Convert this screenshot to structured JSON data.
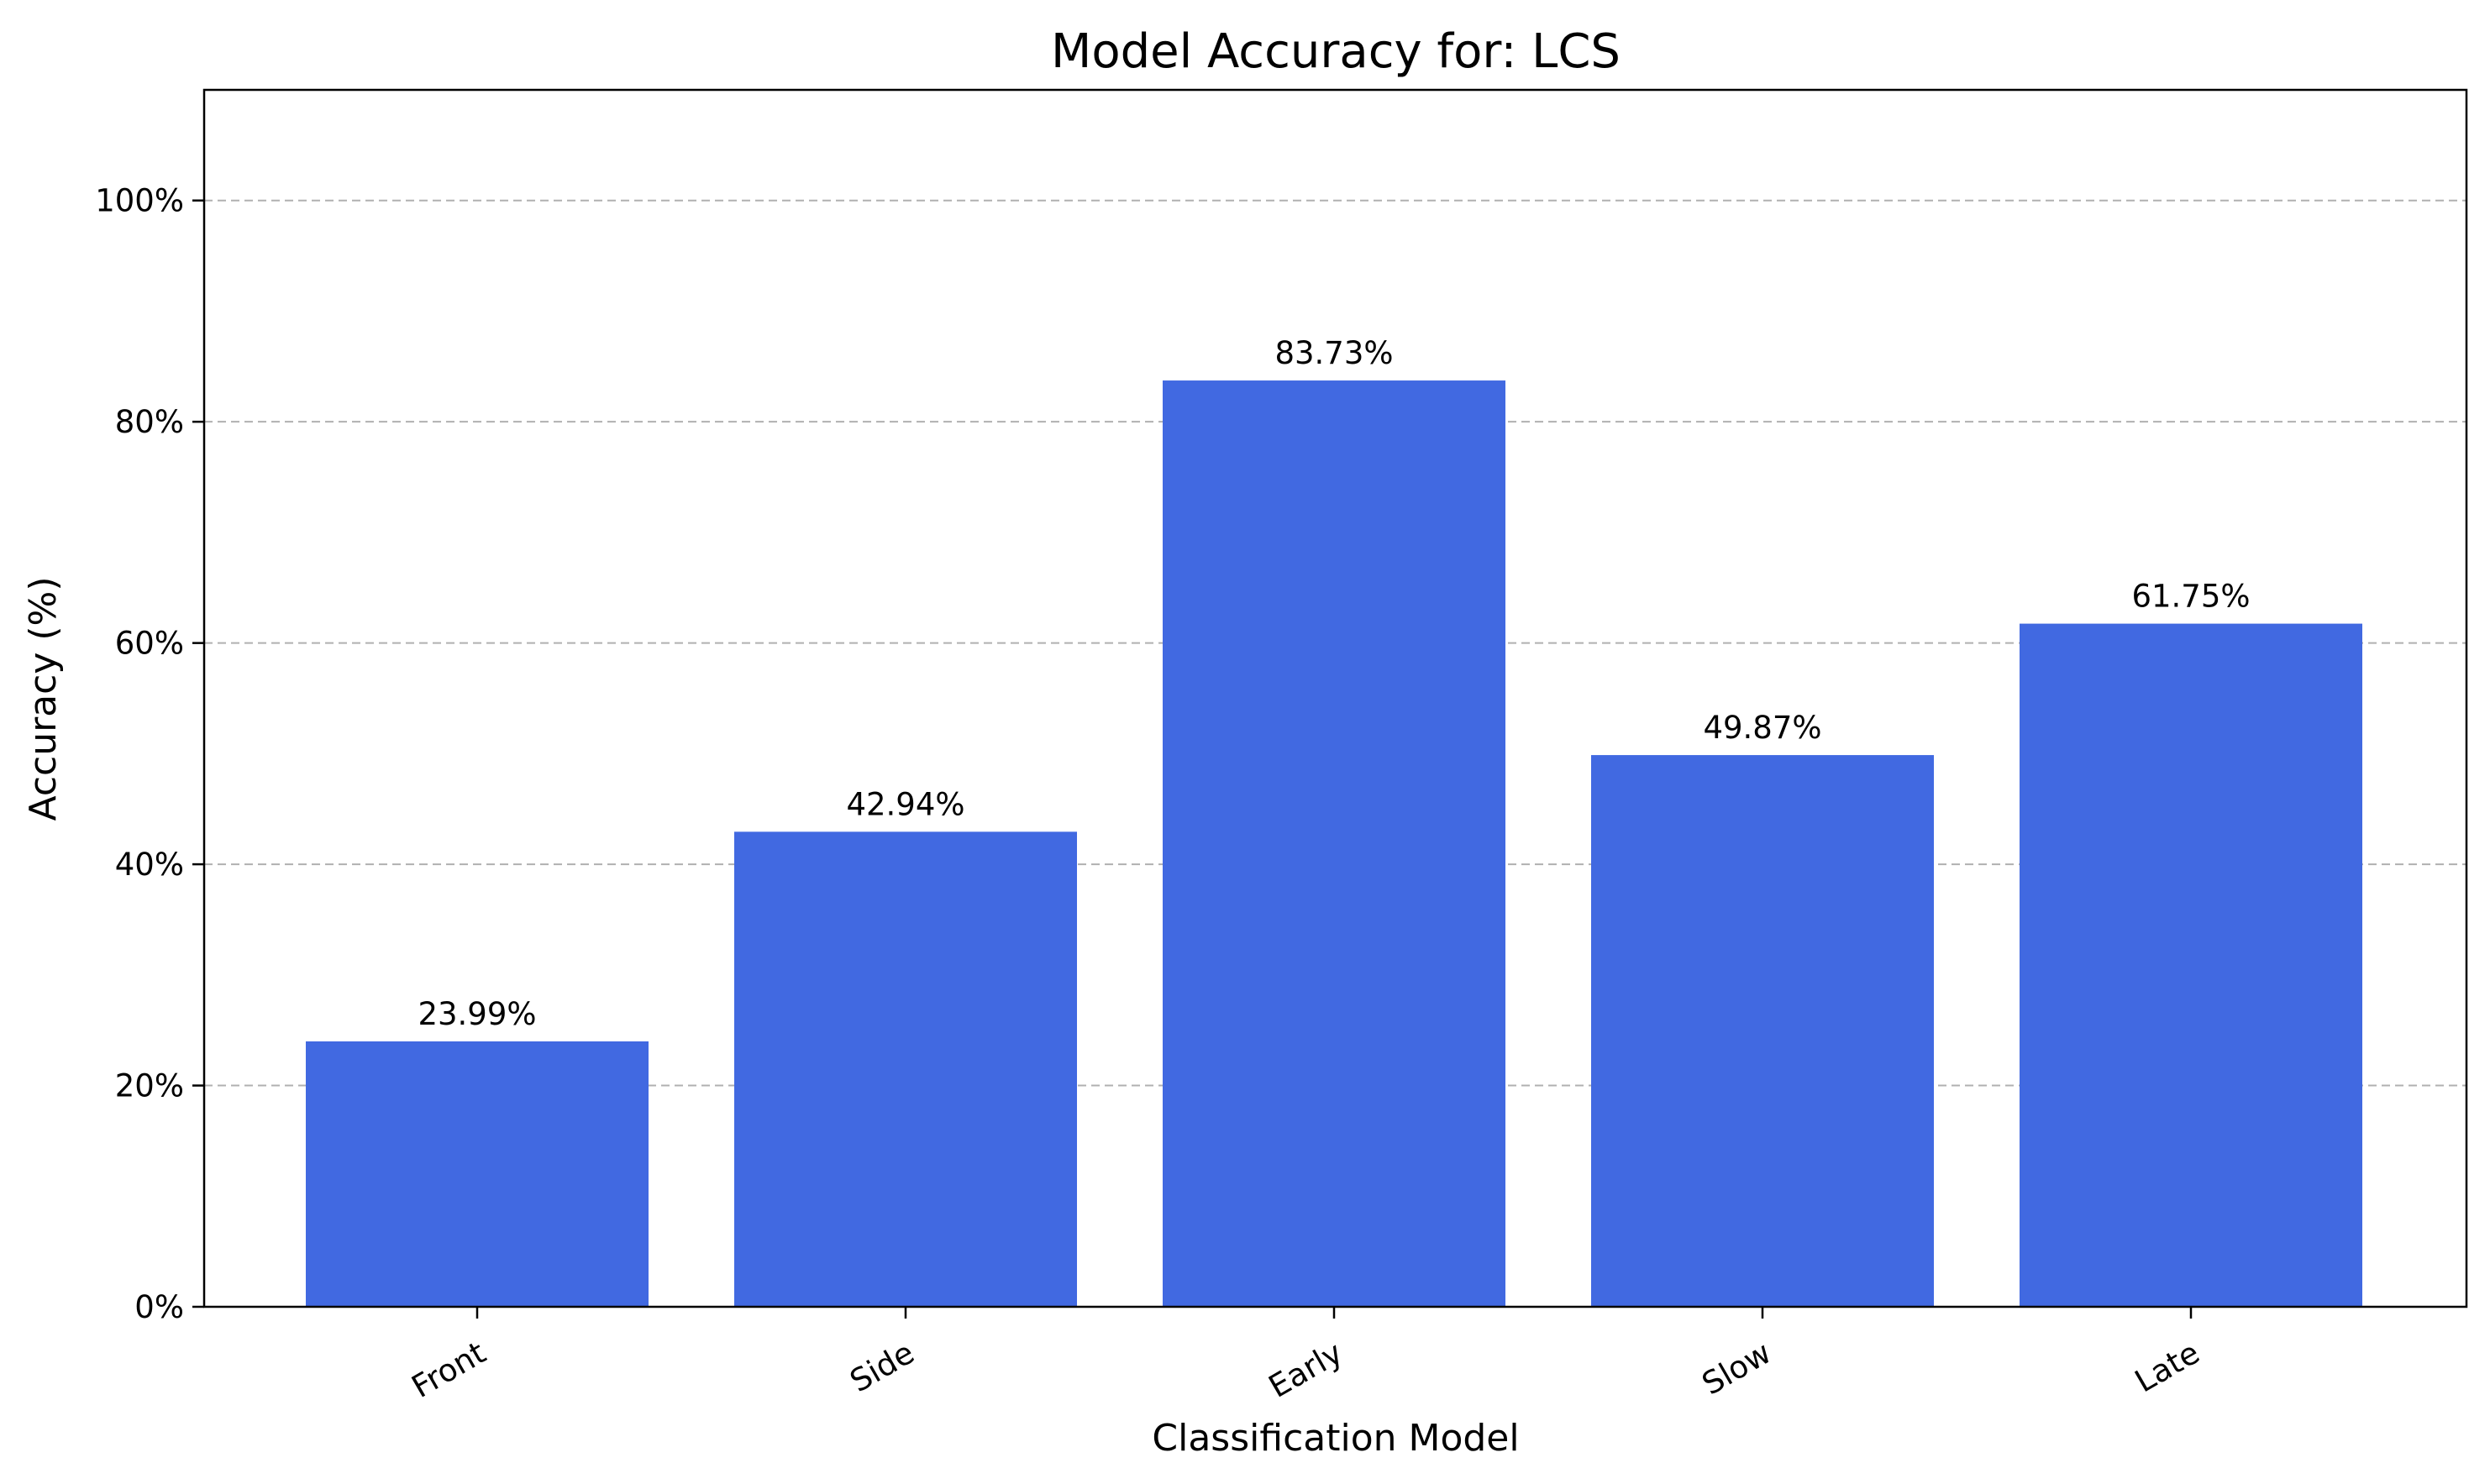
{
  "chart_data": {
    "type": "bar",
    "title": "Model Accuracy for: LCS",
    "xlabel": "Classification Model",
    "ylabel": "Accuracy (%)",
    "categories": [
      "Front",
      "Side",
      "Early",
      "Slow",
      "Late"
    ],
    "values": [
      23.99,
      42.94,
      83.73,
      49.87,
      61.75
    ],
    "value_labels": [
      "23.99%",
      "42.94%",
      "83.73%",
      "49.87%",
      "61.75%"
    ],
    "ylim": [
      0,
      110
    ],
    "yticks": [
      0,
      20,
      40,
      60,
      80,
      100
    ],
    "ytick_labels": [
      "0%",
      "20%",
      "40%",
      "60%",
      "80%",
      "100%"
    ],
    "grid": "y-dashed",
    "bar_color": "#4169e1"
  }
}
